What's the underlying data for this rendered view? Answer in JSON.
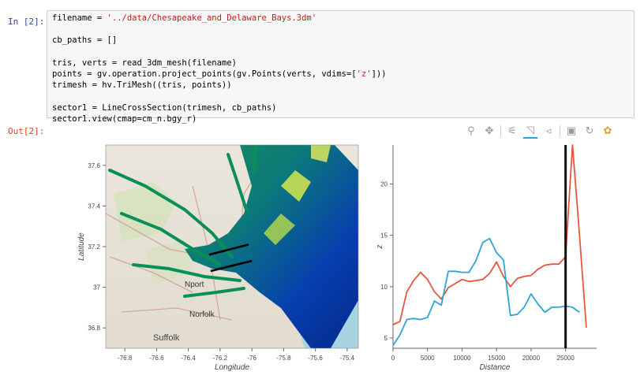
{
  "input_prompt": "In [2]:",
  "output_prompt": "Out[2]:",
  "code_lines": [
    [
      "filename = ",
      "'../data/Chesapeake_and_Delaware_Bays.3dm'"
    ],
    [
      "",
      ""
    ],
    [
      "cb_paths = []",
      ""
    ],
    [
      "",
      ""
    ],
    [
      "tris, verts = read_3dm_mesh(filename)",
      ""
    ],
    [
      "points = gv.operation.project_points(gv.Points(verts, vdims=[",
      "'z'",
      "]))"
    ],
    [
      "trimesh = hv.TriMesh((tris, points))",
      ""
    ],
    [
      "",
      ""
    ],
    [
      "sector1 = LineCrossSection(trimesh, cb_paths)",
      ""
    ],
    [
      "sector1.view(cmap=cm_n.bgy_r)",
      ""
    ]
  ],
  "toolbar": [
    {
      "name": "box-zoom-icon",
      "glyph": "⚲",
      "interactable": true
    },
    {
      "name": "pan-icon",
      "glyph": "✥",
      "interactable": true
    },
    {
      "name": "point-draw-icon",
      "glyph": "⚟",
      "interactable": true
    },
    {
      "name": "poly-draw-icon",
      "glyph": "◹",
      "interactable": true,
      "active": true
    },
    {
      "name": "poly-edit-icon",
      "glyph": "◃",
      "interactable": true
    },
    {
      "name": "save-icon",
      "glyph": "▣",
      "interactable": true
    },
    {
      "name": "reset-icon",
      "glyph": "↻",
      "interactable": true
    },
    {
      "name": "bokeh-logo-icon",
      "glyph": "✿",
      "interactable": true
    }
  ],
  "map_labels": [
    {
      "text": "Norfolk",
      "kind": "place"
    },
    {
      "text": "Suffolk",
      "kind": "place"
    },
    {
      "text": "Nport",
      "kind": "place"
    }
  ],
  "chart_data": [
    {
      "type": "heatmap",
      "xlabel": "Longitude",
      "ylabel": "Latitude",
      "xticks": [
        "-76.8",
        "-76.6",
        "-76.4",
        "-76.2",
        "-76",
        "-75.8",
        "-75.6",
        "-75.4"
      ],
      "yticks": [
        "37.6",
        "37.4",
        "37.2",
        "37",
        "36.8"
      ],
      "xlim": [
        -76.92,
        -75.33
      ],
      "ylim": [
        36.7,
        37.7
      ],
      "cross_section_paths": [
        [
          [
            -76.27,
            37.16
          ],
          [
            -76.02,
            37.21
          ]
        ],
        [
          [
            -76.26,
            37.08
          ],
          [
            -76.0,
            37.13
          ]
        ]
      ]
    },
    {
      "type": "line",
      "xlabel": "Distance",
      "ylabel": "z",
      "xticks": [
        "0",
        "5000",
        "10000",
        "15000",
        "20000",
        "25000"
      ],
      "yticks": [
        "5",
        "10",
        "15",
        "20"
      ],
      "xlim": [
        0,
        29500
      ],
      "ylim": [
        4,
        23.8
      ],
      "vline_x": 25000,
      "series": [
        {
          "color": "#e8553d",
          "points": [
            [
              0,
              6.3
            ],
            [
              1000,
              6.6
            ],
            [
              2000,
              9.5
            ],
            [
              3000,
              10.6
            ],
            [
              4000,
              11.4
            ],
            [
              5000,
              10.7
            ],
            [
              6000,
              9.5
            ],
            [
              7000,
              8.8
            ],
            [
              8000,
              9.9
            ],
            [
              9000,
              10.3
            ],
            [
              10000,
              10.7
            ],
            [
              11000,
              10.5
            ],
            [
              12000,
              10.6
            ],
            [
              13000,
              10.7
            ],
            [
              14000,
              11.3
            ],
            [
              15000,
              12.4
            ],
            [
              16000,
              11.0
            ],
            [
              17000,
              10.0
            ],
            [
              18000,
              10.8
            ],
            [
              19000,
              11.0
            ],
            [
              20000,
              11.1
            ],
            [
              21000,
              11.7
            ],
            [
              22000,
              12.1
            ],
            [
              23000,
              12.2
            ],
            [
              24000,
              12.2
            ],
            [
              25000,
              12.9
            ],
            [
              26000,
              24.0
            ],
            [
              27000,
              15.2
            ],
            [
              28000,
              6.0
            ]
          ]
        },
        {
          "color": "#2ba6d7",
          "points": [
            [
              0,
              4.3
            ],
            [
              1000,
              5.3
            ],
            [
              2000,
              6.8
            ],
            [
              3000,
              6.9
            ],
            [
              4000,
              6.8
            ],
            [
              5000,
              7.0
            ],
            [
              6000,
              8.6
            ],
            [
              7000,
              8.2
            ],
            [
              8000,
              11.5
            ],
            [
              9000,
              11.5
            ],
            [
              10000,
              11.4
            ],
            [
              11000,
              11.4
            ],
            [
              12000,
              12.5
            ],
            [
              13000,
              14.3
            ],
            [
              14000,
              14.7
            ],
            [
              15000,
              13.3
            ],
            [
              16000,
              12.6
            ],
            [
              17000,
              7.2
            ],
            [
              18000,
              7.3
            ],
            [
              19000,
              8.0
            ],
            [
              20000,
              9.3
            ],
            [
              21000,
              8.3
            ],
            [
              22000,
              7.5
            ],
            [
              23000,
              8.0
            ],
            [
              24000,
              8.0
            ],
            [
              25000,
              8.1
            ],
            [
              26000,
              8.0
            ],
            [
              27000,
              7.5
            ]
          ]
        }
      ]
    }
  ]
}
